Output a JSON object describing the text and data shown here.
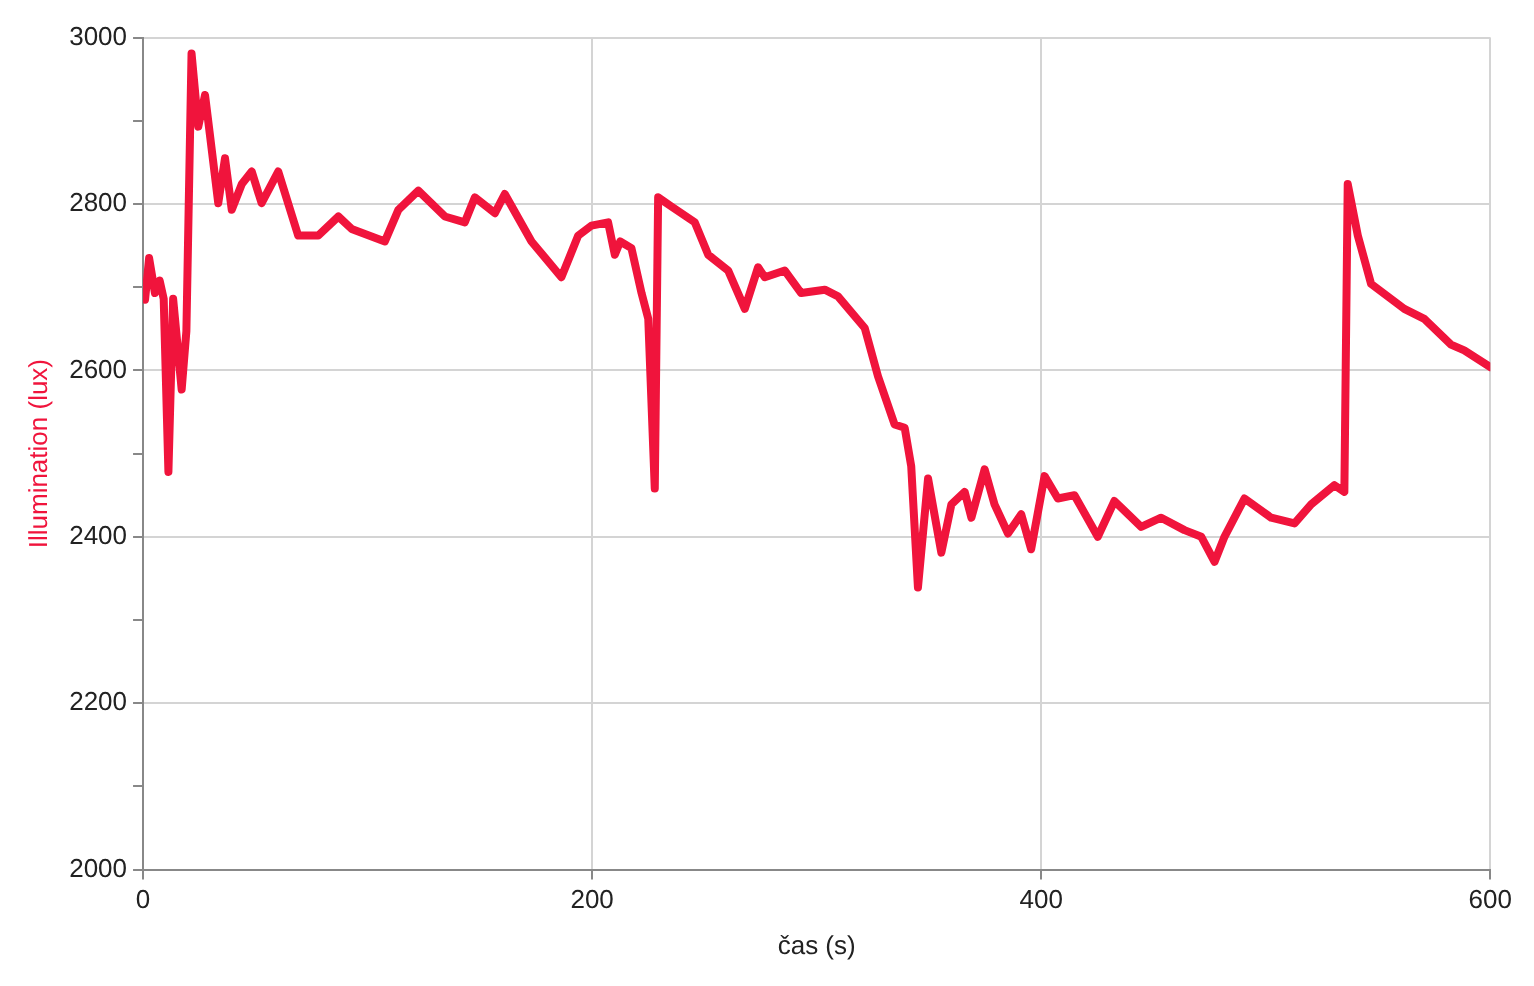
{
  "chart_data": {
    "type": "line",
    "xlabel": "čas (s)",
    "ylabel": "Illumination (lux)",
    "xlim": [
      0,
      600
    ],
    "xticks": [
      0,
      200,
      400,
      600
    ],
    "ylim": [
      2000,
      3000
    ],
    "yticks": [
      2000,
      {
        "value": 2100,
        "label": null
      },
      2200,
      {
        "value": 2300,
        "label": null
      },
      2400,
      {
        "value": 2500,
        "label": null
      },
      2600,
      {
        "value": 2700,
        "label": null
      },
      2800,
      {
        "value": 2900,
        "label": null
      },
      3000
    ],
    "grid": true,
    "legend": false,
    "marker": "none",
    "line_style": "solid",
    "series": [
      {
        "color": "#f0143c",
        "x": [
          0.9,
          2.7,
          5.3,
          7.4,
          9.2,
          11.3,
          13.4,
          17.2,
          19.3,
          21.6,
          24.6,
          27.6,
          29.7,
          33.5,
          36.5,
          39.5,
          44,
          48.4,
          52.8,
          60.2,
          69.1,
          78,
          87,
          92.9,
          107.7,
          113.7,
          122.6,
          134.4,
          143.3,
          147.8,
          156.7,
          161.1,
          173,
          186.3,
          193.8,
          199.7,
          207.1,
          210.1,
          212.5,
          217.5,
          222,
          225,
          227.9,
          229.4,
          235.3,
          245.7,
          251.7,
          260.6,
          268,
          273.9,
          276.9,
          285.8,
          293.1,
          303.6,
          309.5,
          321.4,
          327.3,
          334.7,
          339.2,
          342.1,
          345.1,
          349.6,
          355.5,
          360,
          365.9,
          368.9,
          374.8,
          379.2,
          385.2,
          391.1,
          395.5,
          401.5,
          407.4,
          414.8,
          425.2,
          432.6,
          444.5,
          453.4,
          463.8,
          471.3,
          477.2,
          481.6,
          490.5,
          502.4,
          512.8,
          520.2,
          530.6,
          535,
          536.5,
          541,
          546.9,
          561.7,
          570.6,
          582.5,
          588.4,
          600
        ],
        "values": [
          2685,
          2735,
          2693,
          2708,
          2686,
          2478,
          2686,
          2577,
          2647,
          2981,
          2893,
          2931,
          2885,
          2801,
          2855,
          2793,
          2824,
          2839,
          2801,
          2839,
          2762,
          2762,
          2785,
          2770,
          2755,
          2793,
          2816,
          2785,
          2778,
          2808,
          2789,
          2812,
          2755,
          2712,
          2762,
          2774,
          2778,
          2739,
          2755,
          2747,
          2693,
          2662,
          2458,
          2808,
          2797,
          2778,
          2739,
          2720,
          2674,
          2724,
          2712,
          2720,
          2693,
          2697,
          2689,
          2651,
          2593,
          2535,
          2531,
          2485,
          2339,
          2470,
          2381,
          2439,
          2454,
          2423,
          2481,
          2439,
          2404,
          2427,
          2385,
          2473,
          2446,
          2450,
          2400,
          2443,
          2412,
          2423,
          2408,
          2400,
          2370,
          2400,
          2446,
          2423,
          2416,
          2439,
          2462,
          2454,
          2824,
          2762,
          2704,
          2674,
          2662,
          2631,
          2624,
          2604
        ]
      }
    ]
  }
}
